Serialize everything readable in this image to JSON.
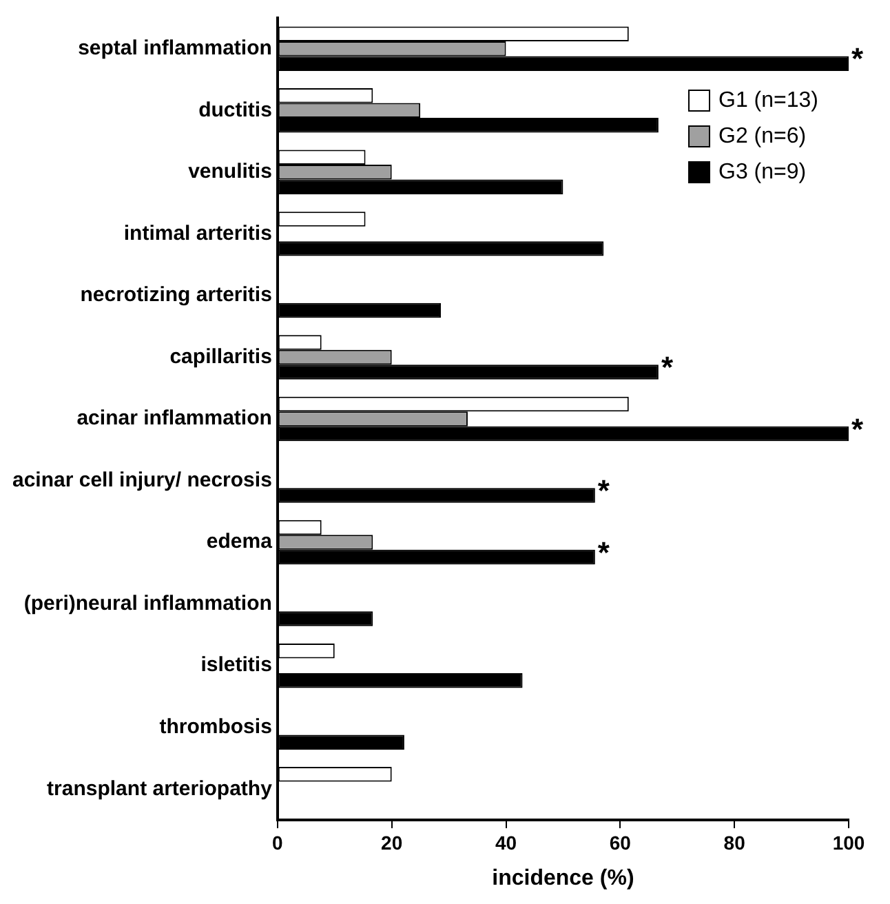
{
  "chart_data": {
    "type": "bar",
    "orientation": "horizontal",
    "xlabel": "incidence (%)",
    "categories": [
      "septal inflammation",
      "ductitis",
      "venulitis",
      "intimal arteritis",
      "necrotizing arteritis",
      "capillaritis",
      "acinar inflammation",
      "acinar cell injury/ necrosis",
      "edema",
      "(peri)neural inflammation",
      "isletitis",
      "thrombosis",
      "transplant arteriopathy"
    ],
    "series": [
      {
        "name": "G1 (n=13)",
        "color": "#ffffff",
        "values": [
          61.5,
          16.7,
          15.4,
          15.4,
          0,
          7.7,
          61.5,
          0,
          7.7,
          0,
          10,
          0,
          20
        ]
      },
      {
        "name": "G2 (n=6)",
        "color": "#a0a0a0",
        "values": [
          40,
          25,
          20,
          0,
          0,
          20,
          33.3,
          0,
          16.7,
          0,
          0,
          0,
          0
        ]
      },
      {
        "name": "G3 (n=9)",
        "color": "#000000",
        "values": [
          100,
          66.7,
          50,
          57.1,
          28.6,
          66.7,
          100,
          55.6,
          55.6,
          16.7,
          42.9,
          22.2,
          0
        ],
        "value_labels": [
          "*",
          null,
          null,
          null,
          null,
          "*",
          "*",
          "*",
          "*",
          null,
          null,
          null,
          null
        ]
      }
    ],
    "xlim": [
      0,
      100
    ],
    "xticks": [
      0,
      20,
      40,
      60,
      80,
      100
    ],
    "grid": false,
    "legend": "top right"
  }
}
